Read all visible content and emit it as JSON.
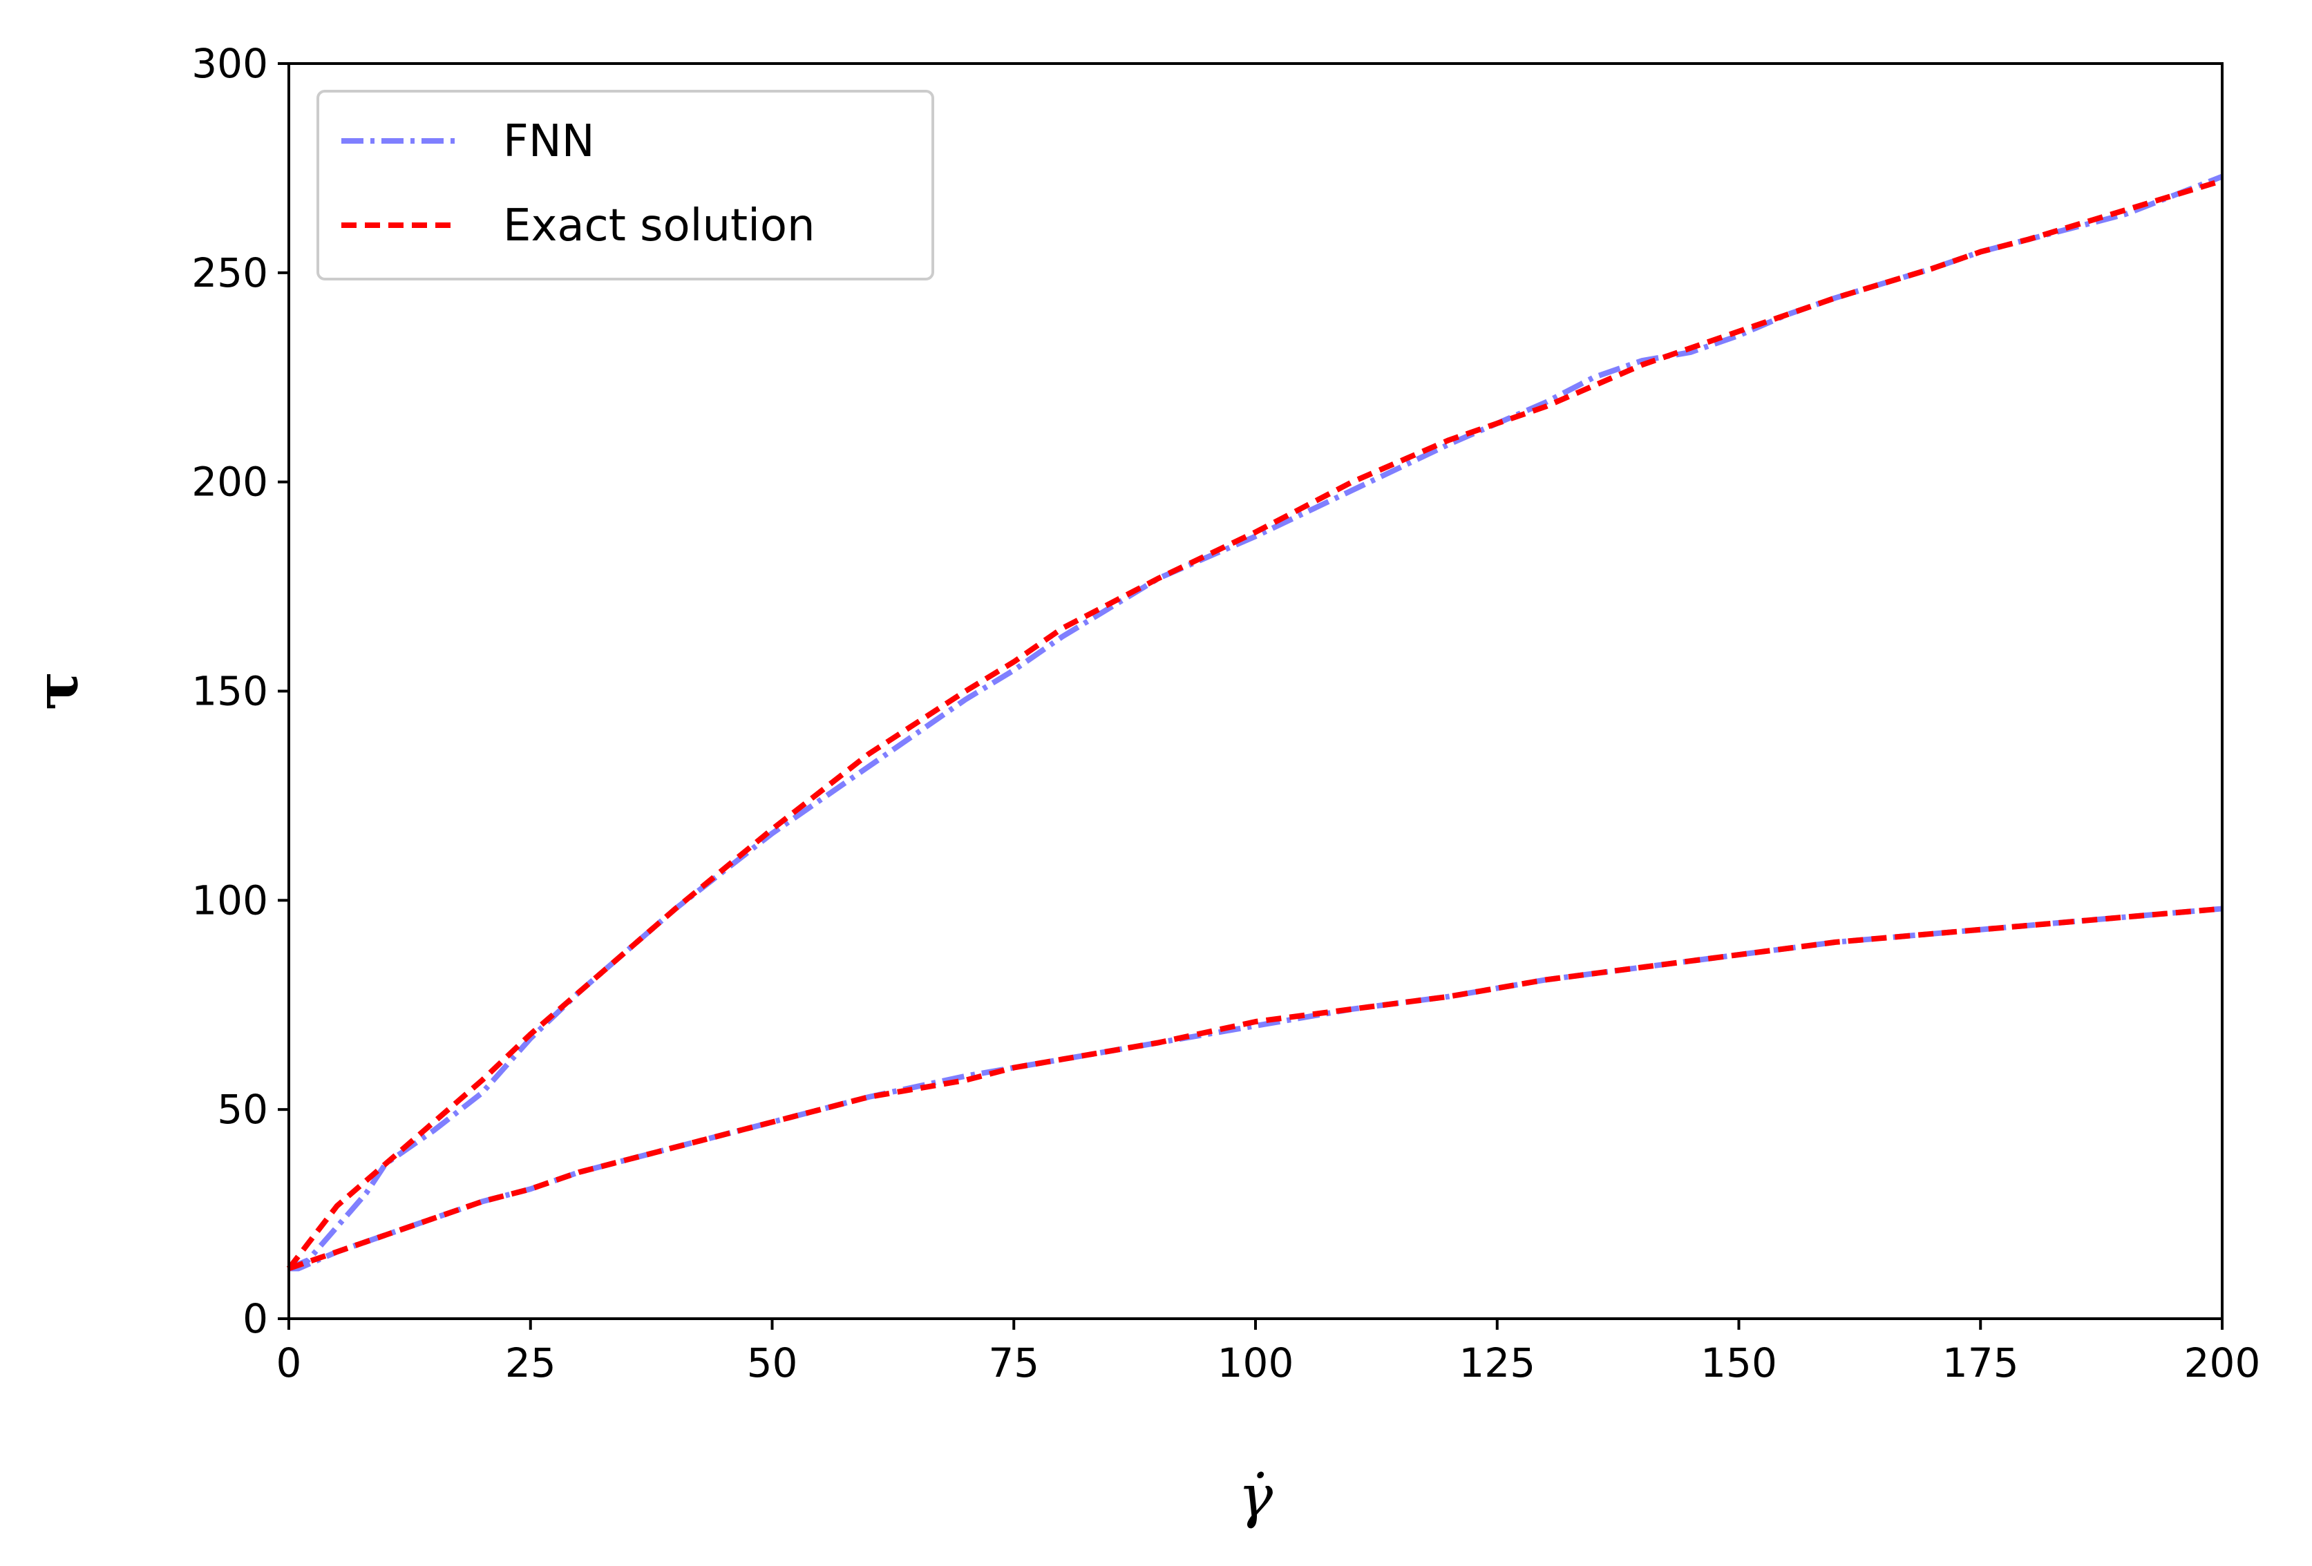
{
  "chart_data": {
    "type": "line",
    "title": "",
    "xlabel": "γ̇",
    "ylabel": "τ",
    "xlim": [
      0,
      200
    ],
    "ylim": [
      0,
      300
    ],
    "x_ticks": [
      "0",
      "25",
      "50",
      "75",
      "100",
      "125",
      "150",
      "175",
      "200"
    ],
    "y_ticks": [
      "0",
      "50",
      "100",
      "150",
      "200",
      "250",
      "300"
    ],
    "grid": false,
    "legend_position": "top-left",
    "legend": [
      {
        "label": "FNN",
        "color": "#7f7fff",
        "style": "dash-dot"
      },
      {
        "label": "Exact solution",
        "color": "#ff0000",
        "style": "dashed"
      }
    ],
    "series": [
      {
        "name": "FNN",
        "color": "#7f7fff",
        "style": "dash-dot",
        "curves": [
          {
            "x": [
              0,
              2,
              5,
              8,
              10,
              15,
              20,
              25,
              30,
              40,
              50,
              60,
              70,
              75,
              80,
              90,
              100,
              110,
              120,
              125,
              130,
              135,
              140,
              145,
              150,
              155,
              160,
              170,
              175,
              180,
              190,
              200
            ],
            "y": [
              12,
              14,
              22,
              30,
              37,
              45,
              54,
              67,
              78,
              98,
              116,
              132,
              148,
              155,
              163,
              177,
              187,
              198,
              209,
              214,
              219,
              225,
              229,
              231,
              235,
              240,
              244,
              251,
              255,
              258,
              264,
              273
            ]
          },
          {
            "x": [
              0,
              1,
              5,
              10,
              15,
              20,
              25,
              30,
              40,
              50,
              60,
              70,
              75,
              80,
              90,
              100,
              110,
              120,
              125,
              130,
              140,
              150,
              160,
              170,
              175,
              180,
              190,
              200
            ],
            "y": [
              12,
              12,
              16,
              20,
              24,
              28,
              31,
              35,
              41,
              47,
              53,
              58,
              60,
              62,
              66,
              70,
              74,
              77,
              79,
              81,
              84,
              87,
              90,
              92,
              93,
              94,
              96,
              98
            ]
          }
        ]
      },
      {
        "name": "Exact solution",
        "color": "#ff0000",
        "style": "dashed",
        "curves": [
          {
            "x": [
              0,
              2,
              5,
              10,
              15,
              20,
              25,
              30,
              40,
              50,
              60,
              70,
              75,
              80,
              90,
              100,
              110,
              120,
              125,
              130,
              140,
              150,
              160,
              170,
              175,
              180,
              190,
              200
            ],
            "y": [
              12,
              18,
              27,
              37,
              47,
              57,
              68,
              78,
              98,
              117,
              135,
              150,
              157,
              165,
              177,
              188,
              200,
              210,
              214,
              218,
              228,
              236,
              244,
              251,
              255,
              258,
              265,
              272
            ]
          },
          {
            "x": [
              0,
              5,
              10,
              15,
              20,
              25,
              30,
              40,
              50,
              60,
              70,
              75,
              80,
              90,
              100,
              110,
              120,
              125,
              130,
              140,
              150,
              160,
              170,
              175,
              180,
              190,
              200
            ],
            "y": [
              12,
              16,
              20,
              24,
              28,
              31,
              35,
              41,
              47,
              53,
              57,
              60,
              62,
              66,
              71,
              74,
              77,
              79,
              81,
              84,
              87,
              90,
              92,
              93,
              94,
              96,
              98
            ]
          }
        ]
      }
    ]
  }
}
